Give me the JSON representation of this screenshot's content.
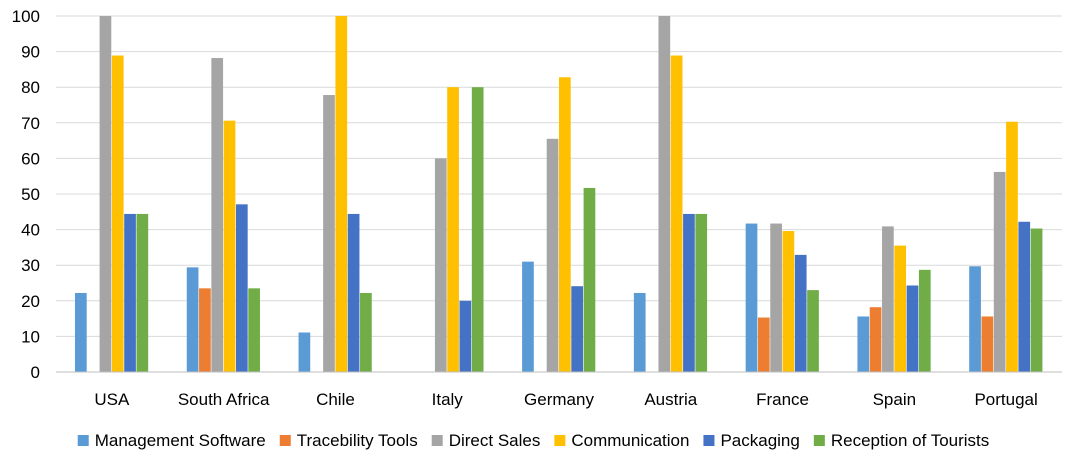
{
  "chart_data": {
    "type": "bar",
    "categories": [
      "USA",
      "South Africa",
      "Chile",
      "Italy",
      "Germany",
      "Austria",
      "France",
      "Spain",
      "Portugal"
    ],
    "ylim": [
      0,
      100
    ],
    "yticks": [
      0,
      10,
      20,
      30,
      40,
      50,
      60,
      70,
      80,
      90,
      100
    ],
    "grid": true,
    "legend_position": "bottom",
    "series": [
      {
        "name": "Management Software",
        "color": "#5b9bd5",
        "values": [
          22.2,
          29.4,
          11.1,
          0,
          31,
          22.2,
          41.7,
          15.6,
          29.7
        ]
      },
      {
        "name": "Tracebility Tools",
        "color": "#ed7d31",
        "values": [
          0,
          23.5,
          0,
          0,
          0,
          0,
          15.3,
          18.2,
          15.6
        ]
      },
      {
        "name": "Direct Sales",
        "color": "#a5a5a5",
        "values": [
          100,
          88.2,
          77.8,
          60,
          65.5,
          100,
          41.7,
          40.9,
          56.2
        ]
      },
      {
        "name": "Communication",
        "color": "#ffc000",
        "values": [
          88.9,
          70.6,
          100,
          80,
          82.8,
          88.9,
          39.6,
          35.5,
          70.3
        ]
      },
      {
        "name": "Packaging",
        "color": "#4472c4",
        "values": [
          44.4,
          47.1,
          44.4,
          20,
          24.1,
          44.4,
          32.9,
          24.3,
          42.2
        ]
      },
      {
        "name": "Reception of Tourists",
        "color": "#70ad47",
        "values": [
          44.4,
          23.5,
          22.2,
          80,
          51.7,
          44.4,
          23,
          28.7,
          40.3
        ]
      }
    ]
  }
}
